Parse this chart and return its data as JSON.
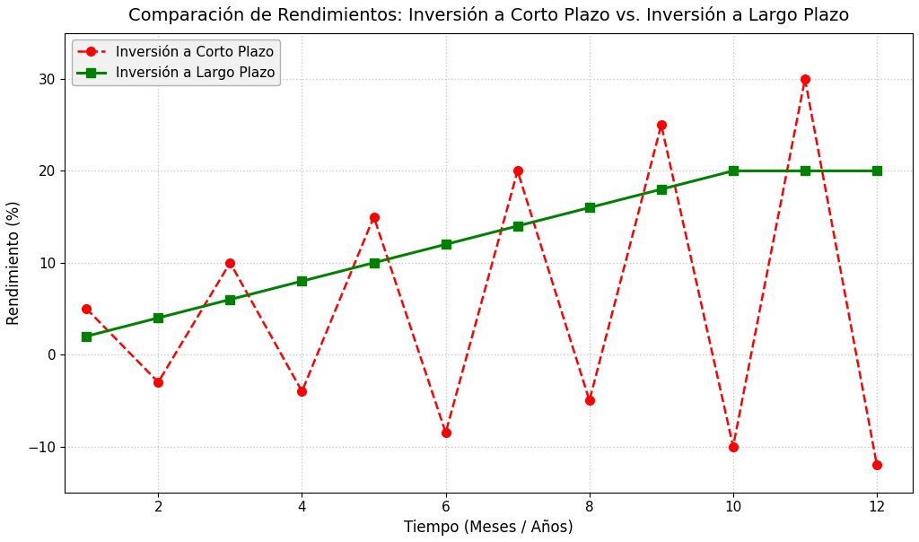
{
  "title": "Comparación de Rendimientos: Inversión a Corto Plazo vs. Inversión a Largo Plazo",
  "xlabel": "Tiempo (Meses / Años)",
  "ylabel": "Rendimiento (%)",
  "short_term_label": "Inversión a Corto Plazo",
  "long_term_label": "Inversión a Largo Plazo",
  "x": [
    1,
    2,
    3,
    4,
    5,
    6,
    7,
    8,
    9,
    10,
    11,
    12
  ],
  "short_term_y": [
    5,
    -3,
    10,
    -4,
    15,
    -8.5,
    20,
    -5,
    25,
    -10,
    30,
    -12
  ],
  "long_term_y": [
    2,
    4,
    6,
    8,
    10,
    12,
    14,
    16,
    18,
    20,
    20,
    20
  ],
  "short_term_color": "#ff0000",
  "long_term_color": "#008000",
  "background_color": "#ffffff",
  "title_fontsize": 14,
  "axis_label_fontsize": 12,
  "legend_fontsize": 11,
  "tick_fontsize": 11,
  "ylim": [
    -15,
    35
  ],
  "xlim": [
    0.7,
    12.5
  ],
  "xticks": [
    2,
    4,
    6,
    8,
    10,
    12
  ],
  "yticks": [
    -10,
    0,
    10,
    20,
    30
  ],
  "grid_color": "#c8c8c8",
  "grid_linestyle": ":",
  "grid_linewidth": 1.0,
  "legend_facecolor": "#f0f0f0",
  "legend_edgecolor": "#aaaaaa"
}
